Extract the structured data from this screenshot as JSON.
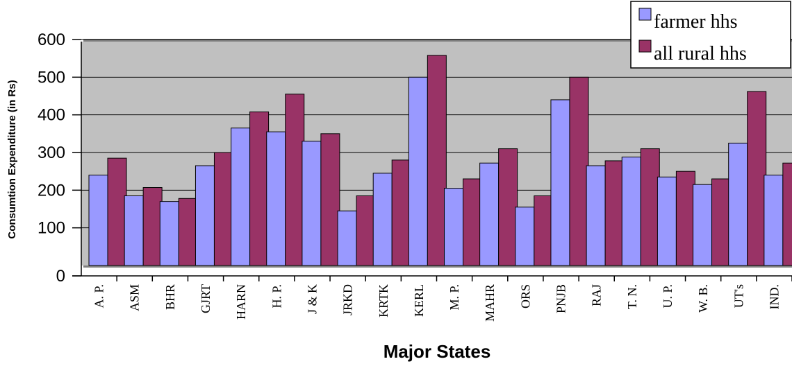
{
  "chart_data": {
    "type": "bar",
    "title": "",
    "xlabel": "Major States",
    "ylabel": "Consumtion Expenditure (in Rs)",
    "ylim": [
      0,
      600
    ],
    "yticks": [
      0,
      100,
      200,
      300,
      400,
      500,
      600
    ],
    "grid": true,
    "legend_position": "top-right",
    "categories": [
      "A. P.",
      "ASM",
      "BHR",
      "GJRT",
      "HARN",
      "H. P.",
      "J & K",
      "JRKD",
      "KRTK",
      "KERL",
      "M. P.",
      "MAHR",
      "ORS",
      "PNJB",
      "RAJ",
      "T. N.",
      "U. P.",
      "W. B.",
      "UT's",
      "IND."
    ],
    "series": [
      {
        "name": "farmer hhs",
        "color": "#9999ff",
        "values": [
          240,
          185,
          170,
          265,
          365,
          355,
          330,
          145,
          245,
          500,
          205,
          272,
          155,
          440,
          265,
          288,
          235,
          215,
          325,
          240
        ]
      },
      {
        "name": "all rural hhs",
        "color": "#993366",
        "values": [
          285,
          207,
          178,
          300,
          408,
          455,
          350,
          185,
          280,
          558,
          230,
          310,
          185,
          500,
          278,
          310,
          250,
          230,
          462,
          272
        ]
      }
    ],
    "colors": {
      "plot_background": "#c0c0c0",
      "gridline": "#000000"
    }
  }
}
